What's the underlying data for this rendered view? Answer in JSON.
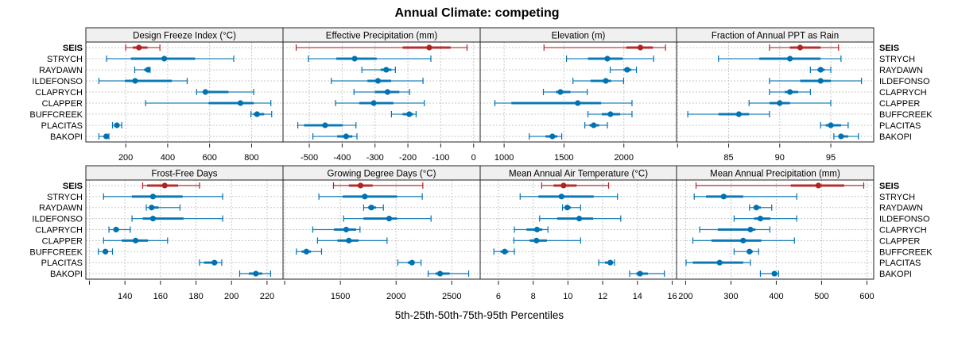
{
  "chart_data": {
    "type": "dot-interval",
    "title": "Annual Climate: competing",
    "xlabel": "5th-25th-50th-75th-95th Percentiles",
    "highlight_site": "SEIS",
    "sites": [
      "SEIS",
      "STRYCH",
      "RAYDAWN",
      "ILDEFONSO",
      "CLAPRYCH",
      "CLAPPER",
      "BUFFCREEK",
      "PLACITAS",
      "BAKOPI"
    ],
    "colors": {
      "highlight": "#b22222",
      "other": "#0072b2",
      "strip_bg": "#f0f0f0",
      "grid": "#c8c8c8"
    },
    "grid": true,
    "percentile_keys": [
      "p5",
      "p25",
      "p50",
      "p75",
      "p95"
    ],
    "panels": [
      {
        "title": "Design Freeze Index (°C)",
        "xlim": [
          10,
          950
        ],
        "ticks": [
          200,
          400,
          600,
          800
        ],
        "tick_labels": [
          "200",
          "400",
          "600",
          "800"
        ],
        "values": [
          [
            200,
            234,
            263,
            304,
            363
          ],
          [
            109,
            225,
            384,
            531,
            715
          ],
          [
            243,
            288,
            306,
            314,
            316
          ],
          [
            72,
            196,
            245,
            420,
            493
          ],
          [
            538,
            569,
            580,
            690,
            810
          ],
          [
            295,
            595,
            747,
            810,
            892
          ],
          [
            797,
            809,
            826,
            860,
            896
          ],
          [
            137,
            145,
            158,
            171,
            181
          ],
          [
            72,
            95,
            107,
            114,
            120
          ]
        ]
      },
      {
        "title": "Effective Precipitation (mm)",
        "xlim": [
          -580,
          20
        ],
        "ticks": [
          -500,
          -400,
          -300,
          -200,
          -100,
          0
        ],
        "tick_labels": [
          "-500",
          "-400",
          "-300",
          "-200",
          "-100",
          "0"
        ],
        "values": [
          [
            -540,
            -216,
            -135,
            -70,
            -20
          ],
          [
            -503,
            -418,
            -362,
            -295,
            -130
          ],
          [
            -340,
            -283,
            -266,
            -250,
            -238
          ],
          [
            -433,
            -323,
            -291,
            -251,
            -154
          ],
          [
            -364,
            -300,
            -262,
            -226,
            -195
          ],
          [
            -420,
            -348,
            -304,
            -244,
            -150
          ],
          [
            -250,
            -216,
            -196,
            -184,
            -175
          ],
          [
            -535,
            -516,
            -452,
            -398,
            -358
          ],
          [
            -489,
            -415,
            -388,
            -369,
            -355
          ]
        ]
      },
      {
        "title": "Elevation (m)",
        "xlim": [
          800,
          2440
        ],
        "ticks": [
          1000,
          1500,
          2000
        ],
        "tick_labels": [
          "1000",
          "1500",
          "2000"
        ],
        "values": [
          [
            1333,
            2020,
            2138,
            2243,
            2348
          ],
          [
            1521,
            1700,
            1862,
            1991,
            2249
          ],
          [
            1886,
            1998,
            2028,
            2063,
            2105
          ],
          [
            1575,
            1722,
            1849,
            1893,
            1998
          ],
          [
            1328,
            1433,
            1470,
            1554,
            1694
          ],
          [
            923,
            1061,
            1615,
            1810,
            2068
          ],
          [
            1700,
            1816,
            1888,
            1969,
            2068
          ],
          [
            1674,
            1713,
            1748,
            1794,
            1862
          ],
          [
            1210,
            1346,
            1403,
            1444,
            1481
          ]
        ]
      },
      {
        "title": "Fraction of Annual PPT as Rain",
        "xlim": [
          79.9,
          99.2
        ],
        "ticks": [
          80,
          85,
          90,
          95
        ],
        "tick_labels": [
          "",
          "85",
          "90",
          "95"
        ],
        "values": [
          [
            89,
            91,
            92,
            94,
            95.75
          ],
          [
            84,
            88,
            91,
            94,
            96
          ],
          [
            93,
            93.7,
            94,
            94.4,
            95
          ],
          [
            89,
            92,
            94,
            95,
            98
          ],
          [
            89,
            90.5,
            91,
            91.8,
            93
          ],
          [
            87,
            89,
            90,
            91,
            95
          ],
          [
            81,
            84,
            86,
            87,
            89
          ],
          [
            94,
            94.5,
            95,
            96,
            96.7
          ],
          [
            95.3,
            95.75,
            96,
            96.7,
            97.7
          ]
        ]
      },
      {
        "title": "Frost-Free Days",
        "xlim": [
          118,
          229
        ],
        "ticks": [
          120,
          140,
          160,
          180,
          200,
          220
        ],
        "tick_labels": [
          "",
          "140",
          "160",
          "180",
          "200",
          "220"
        ],
        "values": [
          [
            150,
            152.5,
            162.4,
            169.9,
            182
          ],
          [
            128,
            143.9,
            155.8,
            172.5,
            195
          ],
          [
            152,
            153.9,
            155,
            159,
            171
          ],
          [
            144,
            150,
            155.8,
            173,
            195
          ],
          [
            131,
            133.7,
            135,
            136.7,
            143
          ],
          [
            128,
            138.2,
            146,
            153,
            164
          ],
          [
            125,
            127.5,
            129,
            130.5,
            133
          ],
          [
            182,
            184.5,
            190.4,
            192,
            194.5
          ],
          [
            204.6,
            209.8,
            213.7,
            217.3,
            222
          ]
        ]
      },
      {
        "title": "Growing Degree Days (°C)",
        "xlim": [
          985,
          2755
        ],
        "ticks": [
          1000,
          1500,
          2000,
          2500
        ],
        "tick_labels": [
          "",
          "1500",
          "2000",
          "2500"
        ],
        "values": [
          [
            1438,
            1576,
            1681,
            1790,
            2240
          ],
          [
            1307,
            1521,
            1719,
            2009,
            2235
          ],
          [
            1709,
            1748,
            1778,
            1819,
            1886
          ],
          [
            1529,
            1707,
            1938,
            2009,
            2314
          ],
          [
            1252,
            1443,
            1552,
            1640,
            1676
          ],
          [
            1295,
            1474,
            1576,
            1664,
            1919
          ],
          [
            1105,
            1152,
            1195,
            1236,
            1331
          ],
          [
            2016,
            2105,
            2143,
            2164,
            2224
          ],
          [
            2288,
            2354,
            2395,
            2481,
            2652
          ]
        ]
      },
      {
        "title": "Mean Annual Air Temperature (°C)",
        "xlim": [
          4.95,
          16.25
        ],
        "ticks": [
          6,
          8,
          10,
          12,
          14,
          16
        ],
        "tick_labels": [
          "6",
          "8",
          "10",
          "12",
          "14",
          "16"
        ],
        "values": [
          [
            8.49,
            9.17,
            9.75,
            10.5,
            12.34
          ],
          [
            7.25,
            8.3,
            9.63,
            11.48,
            12.85
          ],
          [
            9.69,
            9.87,
            9.96,
            10.17,
            10.73
          ],
          [
            8.37,
            9.38,
            10.65,
            11.45,
            13.04
          ],
          [
            6.92,
            7.62,
            8.22,
            8.52,
            8.85
          ],
          [
            6.89,
            7.8,
            8.19,
            8.79,
            10.73
          ],
          [
            5.74,
            6.12,
            6.36,
            6.57,
            6.92
          ],
          [
            11.77,
            12.13,
            12.44,
            12.58,
            12.68
          ],
          [
            13.55,
            13.93,
            14.15,
            14.6,
            15.55
          ]
        ]
      },
      {
        "title": "Mean Annual Precipitation (mm)",
        "xlim": [
          180,
          615
        ],
        "ticks": [
          200,
          300,
          400,
          500,
          600
        ],
        "tick_labels": [
          "200",
          "300",
          "400",
          "500",
          "600"
        ],
        "values": [
          [
            223,
            432,
            493,
            550,
            593
          ],
          [
            219,
            245,
            284,
            327,
            445
          ],
          [
            341,
            351,
            356,
            366,
            390
          ],
          [
            307,
            351,
            365,
            387,
            445
          ],
          [
            231,
            271,
            343,
            354,
            386
          ],
          [
            216,
            257,
            327,
            367,
            440
          ],
          [
            307,
            335,
            341,
            348,
            361
          ],
          [
            201,
            216,
            275,
            327,
            343
          ],
          [
            365,
            390,
            396,
            402,
            405
          ]
        ]
      }
    ]
  }
}
